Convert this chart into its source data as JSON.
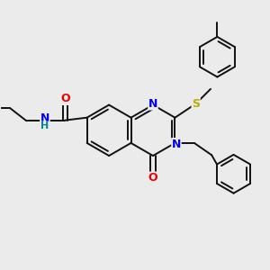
{
  "bg_color": "#ebebeb",
  "atom_colors": {
    "N": "#0000ee",
    "O": "#ee0000",
    "S": "#bbaa00",
    "C": "#000000",
    "H": "#008888"
  },
  "bond_color": "#111111",
  "bond_width": 1.4,
  "figsize": [
    3.0,
    3.0
  ],
  "dpi": 100,
  "xlim": [
    0,
    10
  ],
  "ylim": [
    0,
    10
  ]
}
